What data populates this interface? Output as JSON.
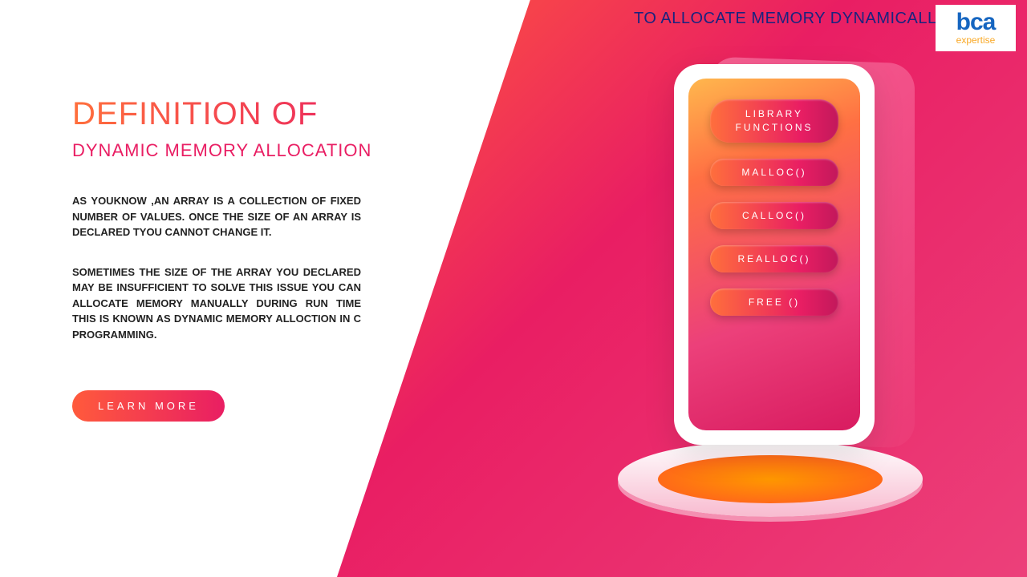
{
  "header": {
    "tagline": "TO ALLOCATE MEMORY DYNAMICALLY"
  },
  "logo": {
    "main": "bca",
    "sub": "expertise"
  },
  "title": {
    "line1": "DEFINITION OF",
    "line2": "DYNAMIC MEMORY ALLOCATION"
  },
  "body": {
    "para1": "AS YOUKNOW ,AN ARRAY IS A COLLECTION OF FIXED NUMBER OF VALUES. ONCE THE SIZE OF AN ARRAY IS DECLARED TYOU CANNOT CHANGE IT.",
    "para2": "SOMETIMES THE SIZE OF THE ARRAY YOU DECLARED MAY BE INSUFFICIENT TO SOLVE THIS ISSUE YOU CAN ALLOCATE MEMORY MANUALLY DURING RUN TIME THIS IS KNOWN AS DYNAMIC MEMORY ALLOCTION IN C PROGRAMMING."
  },
  "cta": {
    "label": "LEARN MORE"
  },
  "phone": {
    "header_label": "LIBRARY FUNCTIONS",
    "functions": [
      "MALLOC()",
      "CALLOC()",
      "REALLOC()",
      "FREE ()"
    ]
  },
  "colors": {
    "gradient_start": "#ff5a3c",
    "gradient_mid": "#e91e63",
    "gradient_end": "#ec407a",
    "accent_orange": "#ff9800",
    "logo_blue": "#1565c0",
    "logo_gold": "#f9a825",
    "header_navy": "#1a237e"
  }
}
